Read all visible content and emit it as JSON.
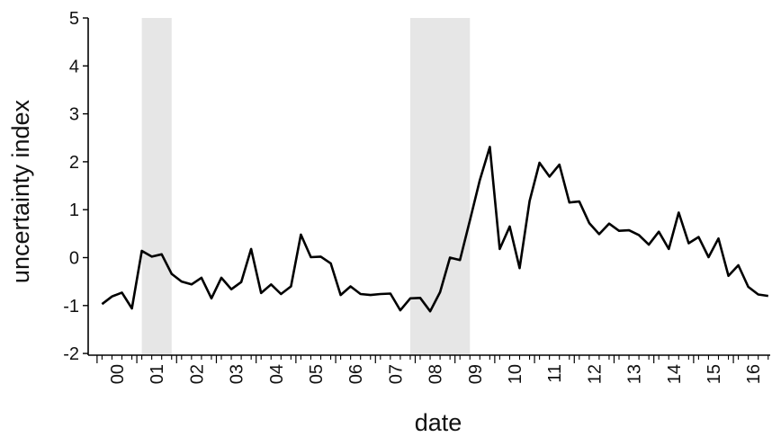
{
  "chart_data": {
    "type": "line",
    "xlabel": "date",
    "ylabel": "uncertainty index",
    "ylim": [
      -2,
      5
    ],
    "y_ticks": [
      -2,
      -1,
      0,
      1,
      2,
      3,
      4,
      5
    ],
    "x_tick_labels": [
      "00",
      "01",
      "02",
      "03",
      "04",
      "05",
      "06",
      "07",
      "08",
      "09",
      "10",
      "11",
      "12",
      "13",
      "14",
      "15",
      "16"
    ],
    "grid": false,
    "shaded_periods": [
      {
        "start": "2001Q1",
        "end": "2001Q4"
      },
      {
        "start": "2007Q4",
        "end": "2009Q2"
      }
    ],
    "series": [
      {
        "x": [
          "2000Q1",
          "2000Q2",
          "2000Q3",
          "2000Q4",
          "2001Q1",
          "2001Q2",
          "2001Q3",
          "2001Q4",
          "2002Q1",
          "2002Q2",
          "2002Q3",
          "2002Q4",
          "2003Q1",
          "2003Q2",
          "2003Q3",
          "2003Q4",
          "2004Q1",
          "2004Q2",
          "2004Q3",
          "2004Q4",
          "2005Q1",
          "2005Q2",
          "2005Q3",
          "2005Q4",
          "2006Q1",
          "2006Q2",
          "2006Q3",
          "2006Q4",
          "2007Q1",
          "2007Q2",
          "2007Q3",
          "2007Q4",
          "2008Q1",
          "2008Q2",
          "2008Q3",
          "2008Q4",
          "2009Q1",
          "2009Q2",
          "2009Q3",
          "2009Q4",
          "2010Q1",
          "2010Q2",
          "2010Q3",
          "2010Q4",
          "2011Q1",
          "2011Q2",
          "2011Q3",
          "2011Q4",
          "2012Q1",
          "2012Q2",
          "2012Q3",
          "2012Q4",
          "2013Q1",
          "2013Q2",
          "2013Q3",
          "2013Q4",
          "2014Q1",
          "2014Q2",
          "2014Q3",
          "2014Q4",
          "2015Q1",
          "2015Q2",
          "2015Q3",
          "2015Q4",
          "2016Q1",
          "2016Q2",
          "2016Q3",
          "2016Q4"
        ],
        "values": [
          -0.97,
          -0.81,
          -0.73,
          -1.06,
          0.14,
          0.02,
          0.07,
          -0.34,
          -0.5,
          -0.56,
          -0.42,
          -0.85,
          -0.42,
          -0.66,
          -0.51,
          0.18,
          -0.74,
          -0.56,
          -0.76,
          -0.6,
          0.48,
          0.01,
          0.02,
          -0.12,
          -0.78,
          -0.6,
          -0.76,
          -0.78,
          -0.76,
          -0.75,
          -1.1,
          -0.85,
          -0.84,
          -1.12,
          -0.72,
          0.0,
          -0.05,
          0.78,
          1.62,
          2.31,
          0.18,
          0.65,
          -0.22,
          1.18,
          1.98,
          1.69,
          1.94,
          1.15,
          1.17,
          0.72,
          0.49,
          0.71,
          0.56,
          0.57,
          0.47,
          0.27,
          0.54,
          0.18,
          0.94,
          0.3,
          0.43,
          0.01,
          0.4,
          -0.38,
          -0.16,
          -0.61,
          -0.77,
          -0.8
        ]
      }
    ]
  }
}
